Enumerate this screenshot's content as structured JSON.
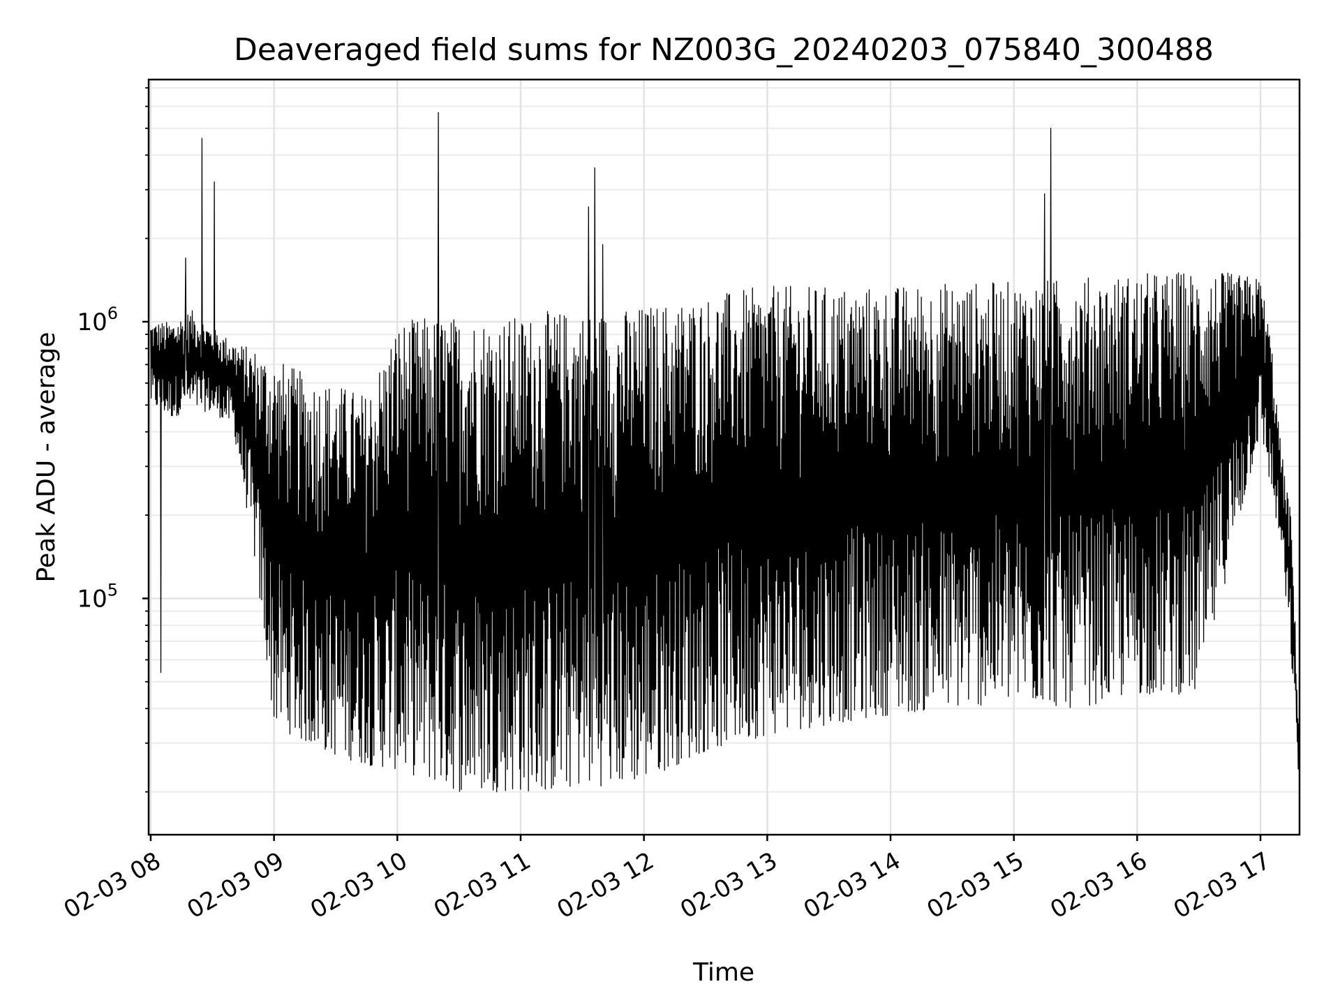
{
  "chart_data": {
    "type": "line",
    "title": "Deaveraged field sums for NZ003G_20240203_075840_300488",
    "xlabel": "Time",
    "ylabel": "Peak ADU - average",
    "yscale": "log",
    "ylim": [
      14000,
      7500000
    ],
    "xlim": [
      "2024-02-03 07:59",
      "2024-02-03 17:19"
    ],
    "grid": true,
    "x_ticks": [
      "02-03 08",
      "02-03 09",
      "02-03 10",
      "02-03 11",
      "02-03 12",
      "02-03 13",
      "02-03 14",
      "02-03 15",
      "02-03 16",
      "02-03 17"
    ],
    "y_ticks": [
      {
        "base": "10",
        "exp": "5",
        "value": 100000
      },
      {
        "base": "10",
        "exp": "6",
        "value": 1000000
      }
    ],
    "series": [
      {
        "color": "#000000",
        "x": [
          "2024-02-03 08:00",
          "2024-02-03 08:10",
          "2024-02-03 08:20",
          "2024-02-03 08:30",
          "2024-02-03 08:40",
          "2024-02-03 08:50",
          "2024-02-03 09:00",
          "2024-02-03 09:15",
          "2024-02-03 09:30",
          "2024-02-03 09:45",
          "2024-02-03 10:00",
          "2024-02-03 10:15",
          "2024-02-03 10:30",
          "2024-02-03 10:45",
          "2024-02-03 11:00",
          "2024-02-03 11:15",
          "2024-02-03 11:30",
          "2024-02-03 11:45",
          "2024-02-03 12:00",
          "2024-02-03 12:30",
          "2024-02-03 13:00",
          "2024-02-03 13:30",
          "2024-02-03 14:00",
          "2024-02-03 14:30",
          "2024-02-03 15:00",
          "2024-02-03 15:30",
          "2024-02-03 16:00",
          "2024-02-03 16:30",
          "2024-02-03 17:00",
          "2024-02-03 17:05",
          "2024-02-03 17:10",
          "2024-02-03 17:15",
          "2024-02-03 17:19"
        ],
        "low": [
          500000,
          450000,
          480000,
          470000,
          420000,
          150000,
          35000,
          30000,
          27000,
          25000,
          24000,
          22000,
          20000,
          20000,
          20000,
          20000,
          21000,
          21000,
          22000,
          28000,
          32000,
          35000,
          38000,
          40000,
          42000,
          40000,
          45000,
          45000,
          400000,
          250000,
          150000,
          60000,
          20000
        ],
        "high": [
          1000000,
          1000000,
          1100000,
          950000,
          850000,
          800000,
          750000,
          650000,
          600000,
          550000,
          1000000,
          1050000,
          1050000,
          1050000,
          1050000,
          1100000,
          1100000,
          1100000,
          1150000,
          1250000,
          1350000,
          1350000,
          1350000,
          1400000,
          1400000,
          1450000,
          1500000,
          1550000,
          1450000,
          900000,
          350000,
          200000,
          30000
        ]
      }
    ],
    "spikes": [
      {
        "x": "2024-02-03 08:25",
        "y": 4600000
      },
      {
        "x": "2024-02-03 08:31",
        "y": 3200000
      },
      {
        "x": "2024-02-03 08:17",
        "y": 1700000
      },
      {
        "x": "2024-02-03 08:05",
        "y": 54000
      },
      {
        "x": "2024-02-03 10:20",
        "y": 5700000
      },
      {
        "x": "2024-02-03 11:36",
        "y": 3600000
      },
      {
        "x": "2024-02-03 11:33",
        "y": 2600000
      },
      {
        "x": "2024-02-03 11:40",
        "y": 1900000
      },
      {
        "x": "2024-02-03 15:15",
        "y": 2900000
      },
      {
        "x": "2024-02-03 15:18",
        "y": 5000000
      }
    ]
  }
}
